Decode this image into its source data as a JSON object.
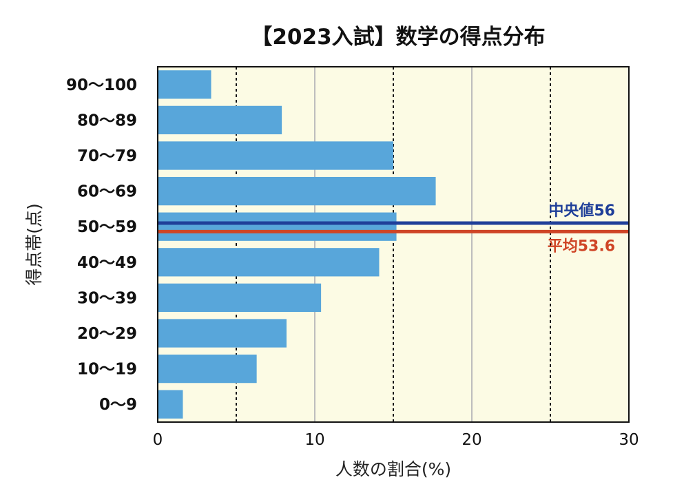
{
  "chart_data": {
    "type": "bar",
    "orientation": "horizontal",
    "title": "【2023入試】数学の得点分布",
    "xlabel": "人数の割合(%)",
    "ylabel": "得点帯(点)",
    "xlim": [
      0,
      30
    ],
    "xticks": [
      0,
      10,
      20,
      30
    ],
    "categories": [
      "0〜9",
      "10〜19",
      "20〜29",
      "30〜39",
      "40〜49",
      "50〜59",
      "60〜69",
      "70〜79",
      "80〜89",
      "90〜100"
    ],
    "values": [
      1.6,
      6.3,
      8.2,
      10.4,
      14.1,
      15.2,
      17.7,
      15.0,
      7.9,
      3.4
    ],
    "reference_lines": [
      {
        "name": "中央値56",
        "value": 56,
        "color": "#1f3f99"
      },
      {
        "name": "平均53.6",
        "value": 53.6,
        "color": "#cf4526"
      }
    ],
    "grid": "vertical",
    "colors": {
      "bar": "#58a6da",
      "plot_background": "#fcfbe4",
      "grid_solid": "#bdbdbd",
      "grid_dotted": "#111111"
    }
  }
}
